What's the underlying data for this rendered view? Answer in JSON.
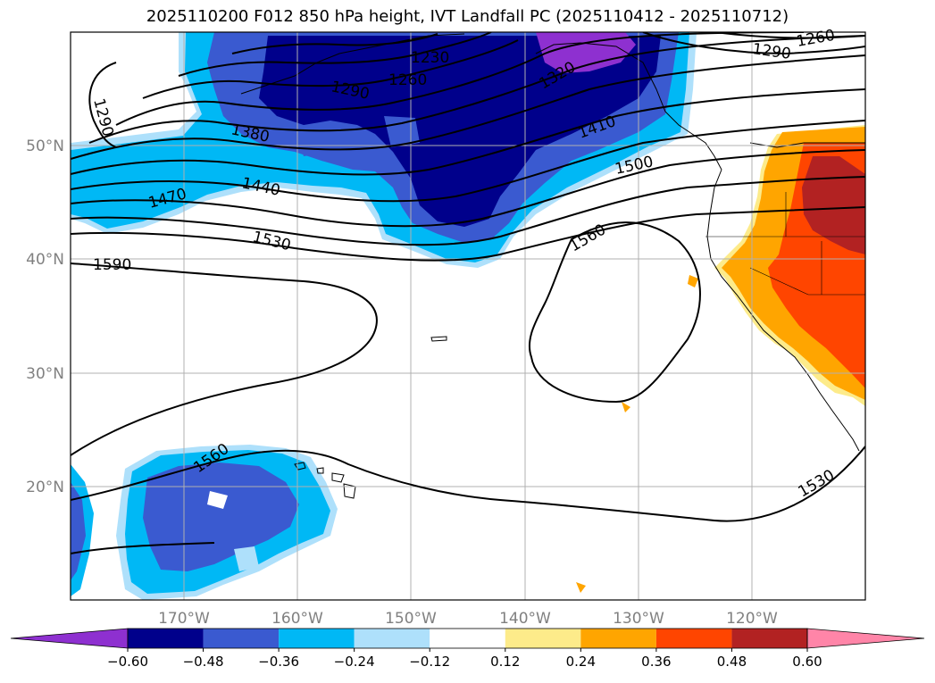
{
  "title": "2025110200 F012 850 hPa height, IVT Landfall PC (2025110412 - 2025110712)",
  "map": {
    "lon_ticks": [
      "170°W",
      "160°W",
      "150°W",
      "140°W",
      "130°W",
      "120°W"
    ],
    "lat_ticks": [
      "50°N",
      "40°N",
      "30°N",
      "20°N"
    ],
    "lon_range": [
      -180,
      -110
    ],
    "lat_range": [
      10,
      60
    ],
    "projection": "PlateCarree"
  },
  "height_contour_labels": [
    "1230",
    "1260",
    "1260",
    "1290",
    "1290",
    "1290",
    "1320",
    "1380",
    "1410",
    "1440",
    "1470",
    "1500",
    "1530",
    "1530",
    "1560",
    "1560",
    "1590"
  ],
  "colorbar": {
    "tick_labels": [
      "−0.60",
      "−0.48",
      "−0.36",
      "−0.24",
      "−0.12",
      "0.12",
      "0.24",
      "0.36",
      "0.48",
      "0.60"
    ],
    "colors": [
      "#8e30d0",
      "#00008b",
      "#3a5ad0",
      "#00b8f5",
      "#aee0fb",
      "#ffffff",
      "#fdeb8a",
      "#ffa500",
      "#ff4500",
      "#b22222",
      "#ff85a8"
    ]
  },
  "fill_colors": {
    "neg_strongest": "#8e30d0",
    "neg_strong": "#00008b",
    "neg_mid": "#3a5ad0",
    "neg_light": "#00b8f5",
    "neg_faint": "#aee0fb",
    "pos_faint": "#fdeb8a",
    "pos_light": "#ffa500",
    "pos_mid": "#ff4500",
    "pos_strong": "#b22222"
  }
}
